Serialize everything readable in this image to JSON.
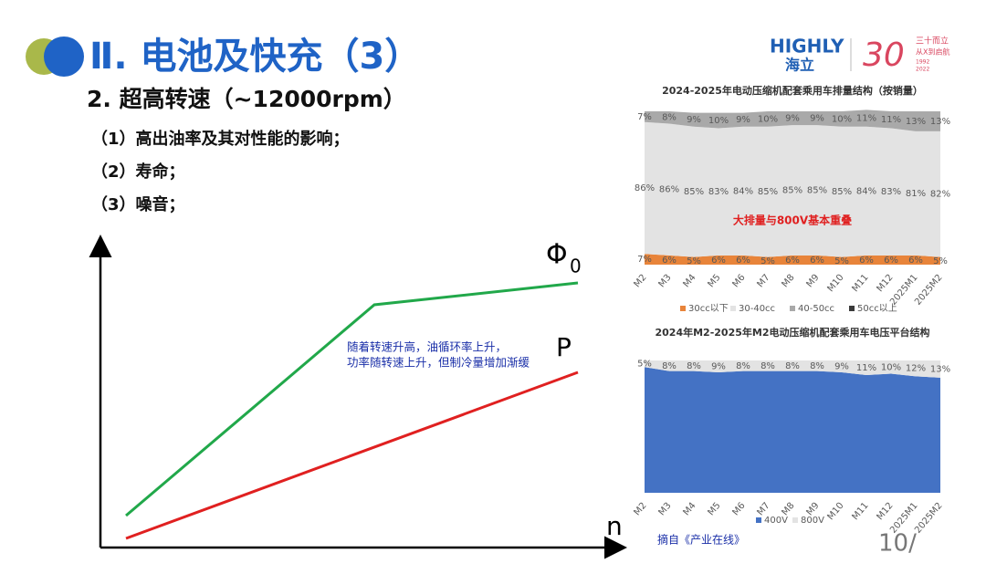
{
  "header": {
    "title": "Ⅱ. 电池及快充（3）",
    "subtitle": "2. 超高转速（~12000rpm）",
    "items": [
      "（1）高出油率及其对性能的影响；",
      "（2）寿命；",
      "（3）噪音；"
    ]
  },
  "logo": {
    "brand": "HIGHLY",
    "brand_cn": "海立",
    "number": "30",
    "slogan": "三十而立",
    "slogan2": "从X到启航",
    "year_start": "1992",
    "year_end": "2022"
  },
  "diagram": {
    "curve1": {
      "symbol": "Φ",
      "subscript": "0"
    },
    "curve2": "P",
    "x_axis": "n",
    "annotation": [
      "随着转速升高，油循环率上升，",
      "功率随转速上升，但制冷量增加渐缓"
    ]
  },
  "chart_data": [
    {
      "type": "area",
      "stacked": true,
      "title": "2024-2025年电动压缩机配套乘用车排量结构（按销量）",
      "annotation": "大排量与800V基本重叠",
      "categories": [
        "M2",
        "M3",
        "M4",
        "M5",
        "M6",
        "M7",
        "M8",
        "M9",
        "M10",
        "M11",
        "M12",
        "2025M1",
        "2025M2"
      ],
      "ylim": [
        0,
        100
      ],
      "series": [
        {
          "name": "30cc以下",
          "color": "#e8843a",
          "values": [
            7,
            6,
            5,
            6,
            6,
            5,
            6,
            6,
            5,
            6,
            6,
            6,
            5
          ],
          "value_labels": [
            "7%",
            "6%",
            "5%",
            "6%",
            "6%",
            "5%",
            "6%",
            "6%",
            "5%",
            "6%",
            "6%",
            "6%",
            "5%"
          ]
        },
        {
          "name": "30-40cc",
          "color": "#e3e3e3",
          "values": [
            86,
            86,
            85,
            83,
            84,
            85,
            85,
            85,
            85,
            84,
            83,
            81,
            82
          ],
          "value_labels": [
            "86%",
            "86%",
            "85%",
            "83%",
            "84%",
            "85%",
            "85%",
            "85%",
            "85%",
            "84%",
            "83%",
            "81%",
            "82%"
          ]
        },
        {
          "name": "40-50cc",
          "color": "#a9a9a9",
          "values": [
            7,
            8,
            9,
            10,
            9,
            10,
            9,
            9,
            10,
            11,
            11,
            13,
            13
          ],
          "value_labels": [
            "7%",
            "8%",
            "9%",
            "10%",
            "9%",
            "10%",
            "9%",
            "9%",
            "10%",
            "11%",
            "11%",
            "13%",
            "13%"
          ]
        },
        {
          "name": "50cc以上",
          "color": "#3a3a3a",
          "values": [
            0,
            0,
            0,
            0,
            0,
            0,
            0,
            0,
            0,
            0,
            0,
            0,
            0
          ]
        }
      ]
    },
    {
      "type": "area",
      "stacked": true,
      "title": "2024年M2-2025年M2电动压缩机配套乘用车电压平台结构",
      "categories": [
        "M2",
        "M3",
        "M4",
        "M5",
        "M6",
        "M7",
        "M8",
        "M9",
        "M10",
        "M11",
        "M12",
        "2025M1",
        "2025M2"
      ],
      "ylim": [
        0,
        100
      ],
      "series": [
        {
          "name": "400V",
          "color": "#4472c4",
          "values": [
            95,
            92,
            92,
            91,
            92,
            92,
            92,
            92,
            91,
            89,
            90,
            88,
            87
          ]
        },
        {
          "name": "800V",
          "color": "#e3e3e3",
          "values": [
            5,
            8,
            8,
            9,
            8,
            8,
            8,
            8,
            9,
            11,
            10,
            12,
            13
          ],
          "value_labels": [
            "5%",
            "8%",
            "8%",
            "9%",
            "8%",
            "8%",
            "8%",
            "8%",
            "9%",
            "11%",
            "10%",
            "12%",
            "13%"
          ]
        }
      ]
    }
  ],
  "footer": {
    "source": "摘自《产业在线》",
    "page": "10/"
  }
}
